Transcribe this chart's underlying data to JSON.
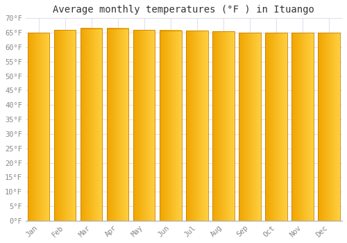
{
  "months": [
    "Jan",
    "Feb",
    "Mar",
    "Apr",
    "May",
    "Jun",
    "Jul",
    "Aug",
    "Sep",
    "Oct",
    "Nov",
    "Dec"
  ],
  "values": [
    65.0,
    66.0,
    66.5,
    66.5,
    66.0,
    65.8,
    65.7,
    65.5,
    65.0,
    65.0,
    65.0,
    65.0
  ],
  "title": "Average monthly temperatures (°F ) in Ituango",
  "ylim": [
    0,
    70
  ],
  "yticks": [
    0,
    5,
    10,
    15,
    20,
    25,
    30,
    35,
    40,
    45,
    50,
    55,
    60,
    65,
    70
  ],
  "ytick_labels": [
    "0°F",
    "5°F",
    "10°F",
    "15°F",
    "20°F",
    "25°F",
    "30°F",
    "35°F",
    "40°F",
    "45°F",
    "50°F",
    "55°F",
    "60°F",
    "65°F",
    "70°F"
  ],
  "bar_color_left": "#F0A500",
  "bar_color_right": "#FFD040",
  "bar_border_color": "#C88000",
  "background_color": "#ffffff",
  "grid_color": "#d8d8e8",
  "title_fontsize": 10,
  "tick_fontsize": 7.5,
  "bar_width": 0.82
}
